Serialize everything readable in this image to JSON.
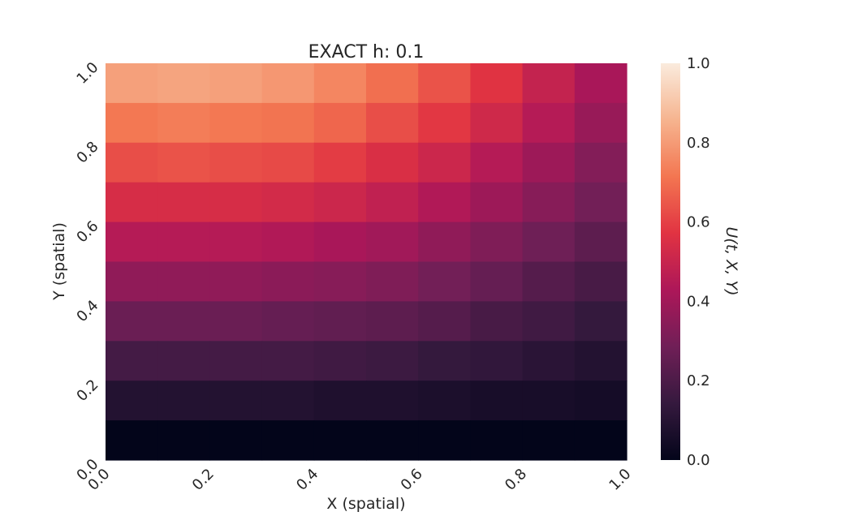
{
  "chart_data": {
    "type": "heatmap",
    "title": "EXACT h: 0.1",
    "xlabel": "X (spatial)",
    "ylabel": "Y (spatial)",
    "colorbar_label": "U(t, X, Y)",
    "x_ticks": [
      "0.0",
      "0.2",
      "0.4",
      "0.6",
      "0.8",
      "1.0"
    ],
    "y_ticks": [
      "0.0",
      "0.2",
      "0.4",
      "0.6",
      "0.8",
      "1.0"
    ],
    "colorbar_ticks": [
      "0.0",
      "0.2",
      "0.4",
      "0.6",
      "0.8",
      "1.0"
    ],
    "xlim": [
      0,
      1
    ],
    "ylim": [
      0,
      1
    ],
    "vlim": [
      0,
      1
    ],
    "nx": 10,
    "ny": 10,
    "values_rows_top_to_bottom": [
      [
        0.81,
        0.82,
        0.81,
        0.79,
        0.75,
        0.7,
        0.64,
        0.57,
        0.49,
        0.42
      ],
      [
        0.72,
        0.73,
        0.72,
        0.71,
        0.68,
        0.63,
        0.58,
        0.52,
        0.45,
        0.38
      ],
      [
        0.63,
        0.64,
        0.63,
        0.62,
        0.59,
        0.55,
        0.51,
        0.45,
        0.39,
        0.33
      ],
      [
        0.54,
        0.54,
        0.54,
        0.53,
        0.51,
        0.48,
        0.44,
        0.39,
        0.34,
        0.29
      ],
      [
        0.45,
        0.45,
        0.45,
        0.44,
        0.42,
        0.4,
        0.36,
        0.32,
        0.28,
        0.24
      ],
      [
        0.36,
        0.36,
        0.36,
        0.35,
        0.34,
        0.32,
        0.29,
        0.26,
        0.22,
        0.19
      ],
      [
        0.27,
        0.27,
        0.27,
        0.26,
        0.25,
        0.24,
        0.22,
        0.19,
        0.17,
        0.14
      ],
      [
        0.18,
        0.18,
        0.18,
        0.18,
        0.17,
        0.16,
        0.14,
        0.13,
        0.11,
        0.09
      ],
      [
        0.09,
        0.09,
        0.09,
        0.09,
        0.08,
        0.08,
        0.07,
        0.06,
        0.06,
        0.05
      ],
      [
        0.0,
        0.0,
        0.0,
        0.0,
        0.0,
        0.0,
        0.0,
        0.0,
        0.0,
        0.0
      ]
    ],
    "colormap": "rocket",
    "colormap_stops": [
      "#03051a",
      "#35193e",
      "#701f57",
      "#ad1759",
      "#e13342",
      "#f37651",
      "#f6b48f",
      "#faebdd"
    ],
    "grid": false,
    "colorbar_position": "right"
  }
}
